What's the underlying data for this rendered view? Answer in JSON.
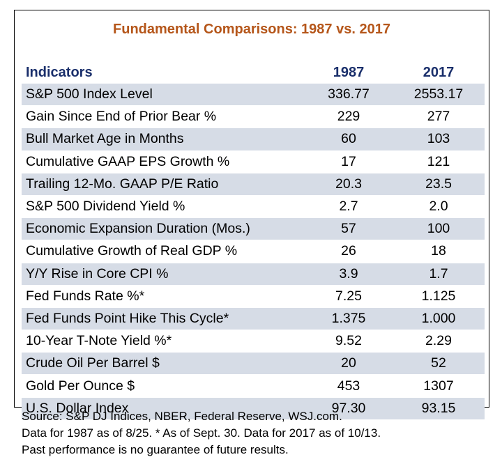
{
  "chart_data": {
    "type": "table",
    "title": "Fundamental Comparisons: 1987 vs. 2017",
    "columns": [
      "Indicators",
      "1987",
      "2017"
    ],
    "rows": [
      [
        "S&P 500 Index Level",
        "336.77",
        "2553.17"
      ],
      [
        "Gain Since End of Prior Bear %",
        "229",
        "277"
      ],
      [
        "Bull Market Age in Months",
        "60",
        "103"
      ],
      [
        "Cumulative GAAP EPS Growth %",
        "17",
        "121"
      ],
      [
        "Trailing 12-Mo. GAAP P/E Ratio",
        "20.3",
        "23.5"
      ],
      [
        "S&P 500 Dividend Yield %",
        "2.7",
        "2.0"
      ],
      [
        "Economic Expansion Duration (Mos.)",
        "57",
        "100"
      ],
      [
        "Cumulative Growth of Real GDP %",
        "26",
        "18"
      ],
      [
        "Y/Y Rise in Core CPI %",
        "3.9",
        "1.7"
      ],
      [
        "Fed Funds Rate %*",
        "7.25",
        "1.125"
      ],
      [
        "Fed Funds Point Hike This Cycle*",
        "1.375",
        "1.000"
      ],
      [
        "10-Year T-Note Yield %*",
        "9.52",
        "2.29"
      ],
      [
        "Crude Oil Per Barrel $",
        "20",
        "52"
      ],
      [
        "Gold Per Ounce $",
        "453",
        "1307"
      ],
      [
        "U.S. Dollar Index",
        "97.30",
        "93.15"
      ]
    ]
  },
  "footer": {
    "source": "Source: S&P DJ Indices, NBER, Federal Reserve, WSJ.com.",
    "data_note": "Data for 1987 as of 8/25. * As of Sept. 30. Data for 2017 as of 10/13.",
    "disclaimer": "Past performance is no guarantee of future results."
  },
  "colors": {
    "title": "#b5561a",
    "header": "#1a2f6b",
    "band": "#d6dce6"
  }
}
